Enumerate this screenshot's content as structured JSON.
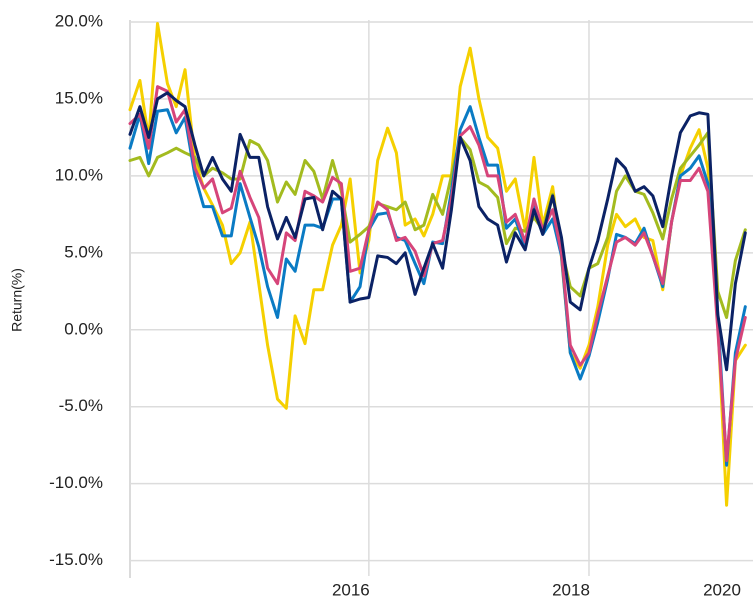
{
  "chart_data": {
    "type": "line",
    "y_axis_title": "Return(%)",
    "grid": true,
    "xlim": [
      2013.83,
      2019.49
    ],
    "ylim": [
      -16,
      20
    ],
    "xticks": [
      2016,
      2018,
      2020
    ],
    "yticks": [
      {
        "value": -15,
        "label": "-15.0%"
      },
      {
        "value": -10,
        "label": "-10.0%"
      },
      {
        "value": -5,
        "label": "-5.0%"
      },
      {
        "value": 0,
        "label": "0.0%"
      },
      {
        "value": 5,
        "label": "5.0%"
      },
      {
        "value": 10,
        "label": "10.0%"
      },
      {
        "value": 15,
        "label": "15.0%"
      },
      {
        "value": 20,
        "label": "20.0%"
      }
    ],
    "x": [
      2013.83,
      2013.92,
      2014.0,
      2014.08,
      2014.17,
      2014.25,
      2014.33,
      2014.42,
      2014.5,
      2014.58,
      2014.67,
      2014.75,
      2014.83,
      2014.92,
      2015.0,
      2015.08,
      2015.17,
      2015.25,
      2015.33,
      2015.42,
      2015.5,
      2015.58,
      2015.67,
      2015.75,
      2015.83,
      2015.92,
      2016.0,
      2016.08,
      2016.17,
      2016.25,
      2016.33,
      2016.42,
      2016.5,
      2016.58,
      2016.67,
      2016.75,
      2016.83,
      2016.92,
      2017.0,
      2017.08,
      2017.17,
      2017.25,
      2017.33,
      2017.42,
      2017.5,
      2017.58,
      2017.67,
      2017.75,
      2017.83,
      2017.92,
      2018.0,
      2018.08,
      2018.17,
      2018.25,
      2018.33,
      2018.42,
      2018.5,
      2018.58,
      2018.67,
      2018.75,
      2018.83,
      2018.92,
      2019.0,
      2019.08,
      2019.17,
      2019.25,
      2019.33,
      2019.42
    ],
    "series": [
      {
        "color": "#f5d000",
        "values": [
          14.3,
          16.2,
          12.4,
          19.9,
          16.0,
          14.5,
          16.9,
          11.0,
          9.2,
          8.1,
          6.8,
          4.3,
          5.0,
          7.0,
          3.0,
          -1.0,
          -4.5,
          -5.1,
          0.9,
          -0.9,
          2.6,
          2.6,
          5.5,
          6.8,
          9.8,
          3.7,
          5.8,
          11.0,
          13.1,
          11.5,
          6.8,
          7.2,
          6.1,
          7.5,
          10.0,
          10.0,
          15.8,
          18.3,
          15.0,
          12.5,
          11.8,
          9.0,
          9.8,
          6.5,
          11.2,
          6.8,
          9.3,
          4.7,
          -1.5,
          -2.5,
          -1.0,
          1.5,
          5.5,
          7.5,
          6.7,
          7.2,
          6.0,
          5.8,
          2.6,
          7.0,
          10.0,
          11.8,
          13.0,
          10.5,
          0.5,
          -11.4,
          -2.0,
          -1.0
        ]
      },
      {
        "color": "#a3bb1f",
        "values": [
          11.0,
          11.2,
          10.0,
          11.2,
          11.5,
          11.8,
          11.5,
          11.2,
          10.0,
          10.5,
          10.2,
          9.8,
          9.8,
          12.3,
          12.0,
          11.0,
          8.3,
          9.6,
          8.8,
          11.0,
          10.3,
          8.5,
          11.0,
          9.0,
          5.7,
          6.2,
          6.7,
          8.2,
          8.0,
          7.8,
          8.3,
          6.5,
          6.8,
          8.8,
          7.5,
          10.0,
          12.5,
          11.7,
          9.6,
          9.3,
          8.6,
          5.6,
          6.6,
          6.4,
          7.3,
          6.5,
          8.8,
          5.3,
          2.8,
          2.2,
          4.0,
          4.3,
          6.0,
          9.0,
          10.0,
          9.0,
          8.8,
          7.6,
          5.9,
          8.5,
          10.5,
          11.3,
          12.0,
          12.8,
          2.5,
          0.8,
          4.5,
          6.5
        ]
      },
      {
        "color": "#0a7bc4",
        "values": [
          11.8,
          14.0,
          10.8,
          14.2,
          14.3,
          12.8,
          13.8,
          10.0,
          8.0,
          8.0,
          6.1,
          6.1,
          9.5,
          7.3,
          5.4,
          2.8,
          0.8,
          4.6,
          3.8,
          6.8,
          6.8,
          6.6,
          8.5,
          8.5,
          1.8,
          2.8,
          6.5,
          7.5,
          7.6,
          6.0,
          5.8,
          4.3,
          3.0,
          5.7,
          5.6,
          9.0,
          13.0,
          14.5,
          12.5,
          10.7,
          10.7,
          6.6,
          7.2,
          5.4,
          8.0,
          6.2,
          7.2,
          4.8,
          -1.5,
          -3.2,
          -1.7,
          0.5,
          3.3,
          6.2,
          6.0,
          5.6,
          6.6,
          4.8,
          2.8,
          7.0,
          10.0,
          10.5,
          11.3,
          9.5,
          1.0,
          -8.8,
          -1.5,
          1.5
        ]
      },
      {
        "color": "#d6457a",
        "values": [
          13.4,
          14.0,
          11.8,
          15.8,
          15.5,
          13.5,
          14.3,
          10.5,
          9.2,
          9.8,
          7.6,
          7.9,
          10.3,
          8.6,
          7.3,
          4.0,
          3.0,
          6.3,
          5.8,
          9.0,
          8.7,
          8.3,
          9.9,
          9.5,
          3.8,
          4.0,
          6.5,
          8.3,
          7.8,
          5.8,
          6.0,
          5.1,
          3.5,
          5.6,
          5.8,
          8.5,
          12.6,
          13.2,
          12.0,
          10.0,
          10.0,
          7.0,
          7.5,
          5.7,
          8.5,
          6.5,
          7.8,
          5.0,
          -1.0,
          -2.3,
          -1.5,
          1.0,
          3.5,
          5.7,
          6.0,
          5.5,
          6.3,
          4.8,
          3.0,
          7.0,
          9.7,
          9.7,
          10.5,
          9.0,
          0.0,
          -8.5,
          -2.0,
          0.8
        ]
      },
      {
        "color": "#0b2265",
        "values": [
          12.7,
          14.5,
          12.5,
          15.0,
          15.4,
          14.9,
          14.5,
          12.0,
          10.0,
          11.2,
          9.8,
          9.0,
          12.7,
          11.2,
          11.2,
          8.0,
          5.9,
          7.3,
          6.0,
          8.5,
          8.6,
          6.5,
          9.0,
          8.5,
          1.8,
          2.0,
          2.1,
          4.8,
          4.7,
          4.3,
          5.0,
          2.3,
          4.0,
          5.6,
          4.0,
          7.8,
          12.5,
          11.0,
          8.0,
          7.2,
          6.8,
          4.4,
          6.3,
          5.2,
          7.8,
          6.2,
          8.7,
          6.0,
          1.8,
          1.3,
          4.0,
          5.8,
          8.5,
          11.1,
          10.5,
          9.0,
          9.3,
          8.7,
          6.7,
          10.0,
          12.8,
          13.9,
          14.1,
          14.0,
          1.0,
          -2.6,
          3.0,
          6.3
        ]
      }
    ]
  }
}
